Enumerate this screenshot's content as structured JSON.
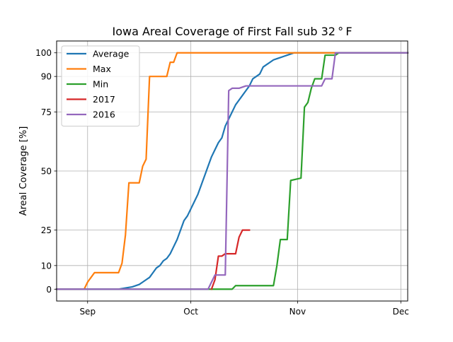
{
  "chart_data": {
    "type": "line",
    "title": "Iowa Areal Coverage of First Fall sub 32$^\\circ$F",
    "title_display": "Iowa Areal Coverage of First Fall sub 32 ° F",
    "xlabel": "",
    "ylabel": "Areal Coverage [%]",
    "x_unit": "day of year (Jan 1 = 0)",
    "xlim": [
      234,
      336
    ],
    "ylim": [
      -5,
      105
    ],
    "y_ticks": [
      0,
      10,
      25,
      50,
      75,
      90,
      100
    ],
    "y_tick_labels": [
      "0",
      "10",
      "25",
      "50",
      "75",
      "90",
      "100"
    ],
    "x_ticks": [
      243,
      273,
      304,
      334
    ],
    "x_tick_labels": [
      "Sep",
      "Oct",
      "Nov",
      "Dec"
    ],
    "grid": true,
    "legend_position": "upper-left",
    "series": [
      {
        "name": "Average",
        "color": "#1f77b4",
        "points": [
          [
            234,
            0
          ],
          [
            252,
            0
          ],
          [
            254,
            0.5
          ],
          [
            256,
            1
          ],
          [
            258,
            2
          ],
          [
            259,
            3
          ],
          [
            260,
            4
          ],
          [
            261,
            5
          ],
          [
            262,
            7
          ],
          [
            263,
            9
          ],
          [
            264,
            10
          ],
          [
            265,
            12
          ],
          [
            266,
            13
          ],
          [
            267,
            15
          ],
          [
            268,
            18
          ],
          [
            269,
            21
          ],
          [
            270,
            25
          ],
          [
            271,
            29
          ],
          [
            272,
            31
          ],
          [
            273,
            34
          ],
          [
            274,
            37
          ],
          [
            275,
            40
          ],
          [
            276,
            44
          ],
          [
            277,
            48
          ],
          [
            278,
            52
          ],
          [
            279,
            56
          ],
          [
            280,
            59
          ],
          [
            281,
            62
          ],
          [
            282,
            64
          ],
          [
            283,
            69
          ],
          [
            284,
            72
          ],
          [
            285,
            75
          ],
          [
            286,
            78
          ],
          [
            287,
            80
          ],
          [
            288,
            82
          ],
          [
            289,
            84
          ],
          [
            290,
            86
          ],
          [
            291,
            89
          ],
          [
            292,
            90
          ],
          [
            293,
            91
          ],
          [
            294,
            94
          ],
          [
            295,
            95
          ],
          [
            296,
            96
          ],
          [
            297,
            97
          ],
          [
            298,
            97.5
          ],
          [
            299,
            98
          ],
          [
            300,
            98.5
          ],
          [
            301,
            99
          ],
          [
            302,
            99.5
          ],
          [
            303,
            100
          ],
          [
            336,
            100
          ]
        ]
      },
      {
        "name": "Max",
        "color": "#ff7f0e",
        "points": [
          [
            234,
            0
          ],
          [
            242,
            0
          ],
          [
            243,
            3
          ],
          [
            244,
            5
          ],
          [
            245,
            7
          ],
          [
            252,
            7
          ],
          [
            253,
            11
          ],
          [
            254,
            23
          ],
          [
            255,
            45
          ],
          [
            258,
            45
          ],
          [
            259,
            52
          ],
          [
            260,
            55
          ],
          [
            261,
            90
          ],
          [
            266,
            90
          ],
          [
            267,
            96
          ],
          [
            268,
            96
          ],
          [
            269,
            100
          ],
          [
            336,
            100
          ]
        ]
      },
      {
        "name": "Min",
        "color": "#2ca02c",
        "points": [
          [
            234,
            0
          ],
          [
            285,
            0
          ],
          [
            286,
            1.5
          ],
          [
            297,
            1.5
          ],
          [
            298,
            10
          ],
          [
            299,
            21
          ],
          [
            301,
            21
          ],
          [
            302,
            46
          ],
          [
            305,
            47
          ],
          [
            306,
            77
          ],
          [
            307,
            79
          ],
          [
            308,
            85
          ],
          [
            309,
            89
          ],
          [
            311,
            89
          ],
          [
            312,
            99
          ],
          [
            315,
            99
          ],
          [
            316,
            100
          ],
          [
            321,
            100
          ],
          [
            336,
            100
          ]
        ]
      },
      {
        "name": "2017",
        "color": "#d62728",
        "points": [
          [
            279,
            0
          ],
          [
            280,
            4
          ],
          [
            281,
            14
          ],
          [
            282,
            14
          ],
          [
            283,
            15
          ],
          [
            286,
            15
          ],
          [
            287,
            22
          ],
          [
            288,
            25
          ],
          [
            290,
            25
          ]
        ]
      },
      {
        "name": "2016",
        "color": "#9467bd",
        "points": [
          [
            234,
            0
          ],
          [
            278,
            0
          ],
          [
            279,
            3
          ],
          [
            280,
            6
          ],
          [
            283,
            6
          ],
          [
            284,
            84
          ],
          [
            285,
            85
          ],
          [
            287,
            85
          ],
          [
            289,
            86
          ],
          [
            311,
            86
          ],
          [
            312,
            89
          ],
          [
            314,
            89
          ],
          [
            315,
            100
          ],
          [
            336,
            100
          ]
        ]
      }
    ]
  }
}
